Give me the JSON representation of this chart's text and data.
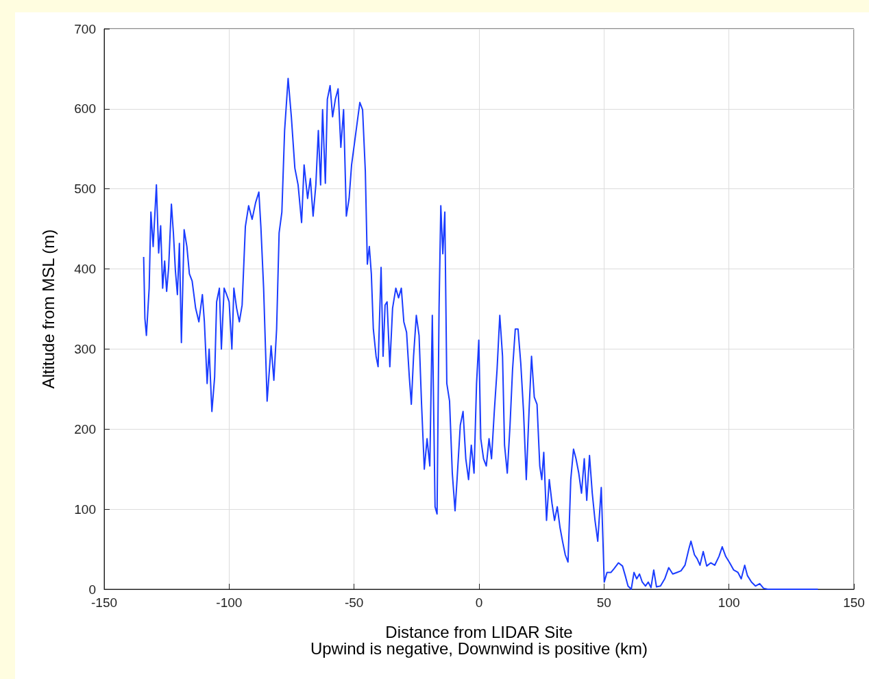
{
  "chart_data": {
    "type": "line",
    "xlabel": "Distance from LIDAR Site\nUpwind is negative, Downwind is positive (km)",
    "ylabel": "Altitude from MSL (m)",
    "x": [
      -134.2,
      -133.7,
      -133.1,
      -132,
      -131.3,
      -130.4,
      -129.1,
      -128.2,
      -127.4,
      -126.6,
      -125.8,
      -125,
      -124.2,
      -123.1,
      -122.3,
      -121.5,
      -120.7,
      -119.9,
      -119.1,
      -118,
      -116.9,
      -115.9,
      -114.8,
      -113.4,
      -112.1,
      -110.7,
      -109.9,
      -108.8,
      -108,
      -106.9,
      -105.8,
      -105,
      -103.9,
      -103.1,
      -102,
      -101,
      -100,
      -98.9,
      -98.1,
      -97,
      -95.9,
      -94.8,
      -93.5,
      -92.2,
      -90.8,
      -89.4,
      -88.1,
      -87.3,
      -86.2,
      -84.8,
      -83.2,
      -82.1,
      -81,
      -80,
      -78.9,
      -77.8,
      -76.4,
      -75.1,
      -73.7,
      -72.4,
      -71,
      -70,
      -68.6,
      -67.5,
      -66.4,
      -65.3,
      -64.3,
      -63.4,
      -62.6,
      -61.5,
      -60.7,
      -59.6,
      -58.6,
      -57.5,
      -56.4,
      -55.3,
      -54.2,
      -53.1,
      -52,
      -51,
      -49.9,
      -48.8,
      -47.7,
      -46.6,
      -45.5,
      -44.7,
      -43.9,
      -43.1,
      -42.3,
      -41.2,
      -40.4,
      -39.2,
      -38.4,
      -37.6,
      -36.8,
      -35.7,
      -34.6,
      -33.3,
      -32.2,
      -31.1,
      -30.1,
      -29,
      -27.9,
      -27.1,
      -26.2,
      -25.1,
      -24,
      -23,
      -21.9,
      -20.8,
      -19.7,
      -18.7,
      -17.6,
      -16.8,
      -16,
      -15.3,
      -14.5,
      -13.7,
      -12.9,
      -11.8,
      -10.7,
      -9.6,
      -8.8,
      -7.5,
      -6.4,
      -5.3,
      -4.2,
      -3.1,
      -2,
      -1,
      -0.1,
      0.7,
      1.8,
      2.9,
      4,
      5,
      6.1,
      7.2,
      8.3,
      9.4,
      10.2,
      11.3,
      12.4,
      13.4,
      14.5,
      15.6,
      16.7,
      17.8,
      18.9,
      20,
      21,
      22.1,
      23.2,
      24.3,
      25.1,
      25.9,
      27,
      28.1,
      29.2,
      30.2,
      31.3,
      32.4,
      33.4,
      34.5,
      35.6,
      36.7,
      37.8,
      38.8,
      39.9,
      41,
      42.1,
      43.1,
      44.2,
      45.3,
      46.4,
      47.5,
      48.9,
      50.1,
      51.2,
      52.8,
      54.1,
      55.8,
      57.4,
      58.5,
      59.6,
      60.9,
      62,
      63.1,
      64.2,
      65.3,
      66.6,
      67.7,
      68.8,
      69.9,
      71,
      72.6,
      74.3,
      75.9,
      77.5,
      79.2,
      80.8,
      82.4,
      84,
      84.8,
      86.2,
      87.3,
      88.4,
      89.7,
      91.1,
      92.7,
      94.3,
      96,
      97.3,
      98.7,
      100.3,
      101.9,
      103.6,
      104.9,
      106.3,
      107.4,
      109,
      110.6,
      112.3,
      113.9,
      115.5,
      135.6
    ],
    "series": [
      {
        "color": "#1a3cff",
        "values": [
          415,
          338,
          317,
          376,
          471,
          428,
          505,
          420,
          454,
          376,
          410,
          372,
          402,
          481,
          445,
          398,
          368,
          432,
          308,
          449,
          428,
          394,
          385,
          351,
          334,
          368,
          334,
          257,
          300,
          222,
          265,
          359,
          376,
          300,
          376,
          368,
          359,
          300,
          376,
          351,
          334,
          355,
          453,
          479,
          462,
          483,
          496,
          453,
          376,
          235,
          304,
          261,
          325,
          445,
          471,
          573,
          638,
          590,
          526,
          505,
          458,
          530,
          488,
          513,
          466,
          505,
          573,
          505,
          599,
          507,
          612,
          629,
          590,
          612,
          625,
          552,
          599,
          466,
          488,
          530,
          556,
          582,
          608,
          599,
          522,
          406,
          428,
          394,
          325,
          291,
          278,
          402,
          291,
          355,
          359,
          278,
          351,
          376,
          364,
          376,
          334,
          321,
          265,
          231,
          291,
          342,
          317,
          231,
          150,
          188,
          154,
          342,
          103,
          94,
          351,
          479,
          419,
          471,
          257,
          235,
          145,
          98,
          137,
          205,
          222,
          163,
          137,
          180,
          145,
          257,
          311,
          188,
          163,
          154,
          188,
          163,
          222,
          274,
          342,
          291,
          180,
          145,
          205,
          274,
          325,
          325,
          282,
          222,
          137,
          222,
          291,
          240,
          231,
          154,
          137,
          171,
          86,
          137,
          107,
          86,
          103,
          77,
          60,
          43,
          34,
          137,
          175,
          163,
          145,
          120,
          163,
          111,
          167,
          120,
          86,
          60,
          127,
          9,
          21,
          21,
          26,
          33,
          29,
          17,
          4,
          0,
          21,
          13,
          19,
          9,
          4,
          9,
          2,
          24,
          3,
          4,
          13,
          27,
          19,
          21,
          23,
          30,
          51,
          60,
          43,
          38,
          30,
          47,
          29,
          33,
          30,
          41,
          53,
          41,
          33,
          24,
          21,
          13,
          30,
          17,
          9,
          4,
          7,
          1,
          0,
          0
        ]
      }
    ],
    "xlim": [
      -150,
      150
    ],
    "xticks": [
      -150,
      -100,
      -50,
      0,
      50,
      100,
      150
    ],
    "ylim": [
      0,
      700
    ],
    "yticks": [
      0,
      100,
      200,
      300,
      400,
      500,
      600,
      700
    ],
    "grid": true,
    "marker": "none"
  }
}
